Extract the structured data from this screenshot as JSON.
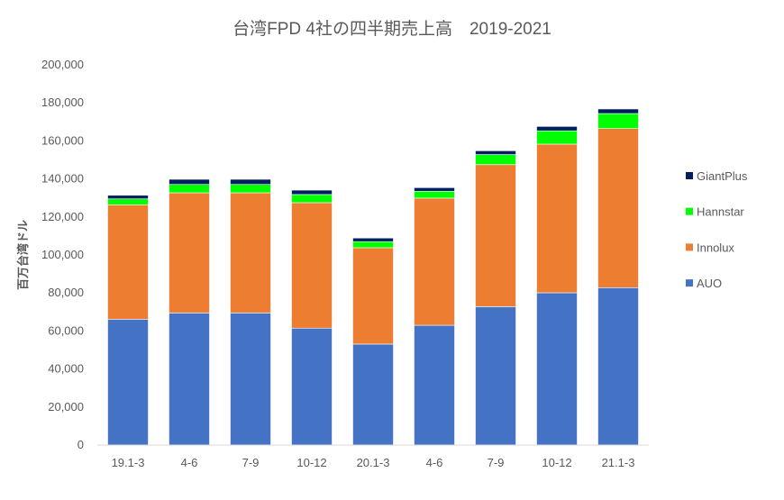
{
  "chart_data": {
    "type": "bar",
    "stacked": true,
    "title": "台湾FPD 4社の四半期売上高　2019-2021",
    "xlabel": "",
    "ylabel": "百万台湾ドル",
    "ylim": [
      0,
      200000
    ],
    "yticks": [
      0,
      20000,
      40000,
      60000,
      80000,
      100000,
      120000,
      140000,
      160000,
      180000,
      200000
    ],
    "ytick_labels": [
      "0",
      "20,000",
      "40,000",
      "60,000",
      "80,000",
      "100,000",
      "120,000",
      "140,000",
      "160,000",
      "180,000",
      "200,000"
    ],
    "grid": false,
    "legend_position": "right",
    "categories": [
      "19.1-3",
      "4-6",
      "7-9",
      "10-12",
      "20.1-3",
      "4-6",
      "7-9",
      "10-12",
      "21.1-3"
    ],
    "series": [
      {
        "name": "AUO",
        "color": "#4472C4",
        "values": [
          66200,
          69500,
          69500,
          61500,
          53100,
          63000,
          72800,
          80100,
          82800
        ]
      },
      {
        "name": "Innolux",
        "color": "#ED7D31",
        "values": [
          60200,
          63200,
          63200,
          66000,
          50700,
          66900,
          74700,
          78200,
          83700
        ]
      },
      {
        "name": "Hannstar",
        "color": "#00FF00",
        "values": [
          3100,
          4400,
          4400,
          4300,
          3200,
          3600,
          5300,
          7000,
          7900
        ]
      },
      {
        "name": "GiantPlus",
        "color": "#002060",
        "values": [
          1900,
          2700,
          2700,
          2300,
          1900,
          1900,
          2000,
          2300,
          2400
        ]
      }
    ]
  }
}
